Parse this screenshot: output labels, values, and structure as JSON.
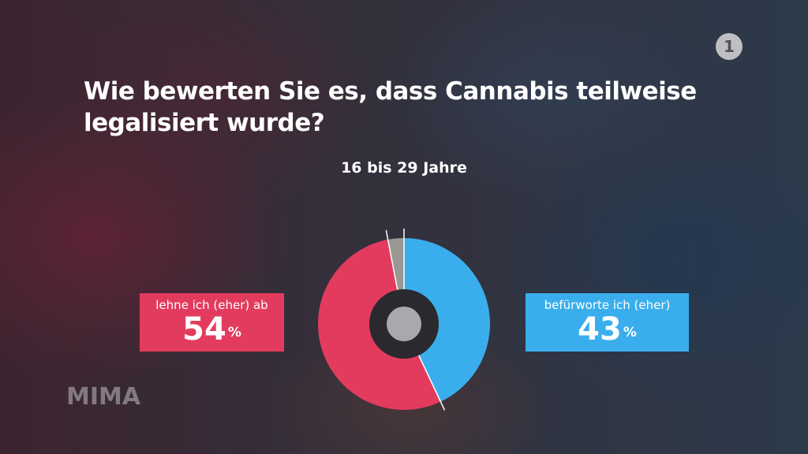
{
  "channel_logo": {
    "text": "1",
    "color": "#d7d7d7"
  },
  "watermark": "MIMA",
  "chart_data": {
    "type": "donut",
    "title": "Wie bewerten Sie es, dass Cannabis teilweise legalisiert wurde?",
    "subtitle": "16 bis 29 Jahre",
    "slices": [
      {
        "label": "befürworte ich (eher)",
        "value": 43,
        "display": "43",
        "unit": "%",
        "color": "#3aaeed"
      },
      {
        "label": "lehne ich (eher) ab",
        "value": 54,
        "display": "54",
        "unit": "%",
        "color": "#e33b5e"
      },
      {
        "label": "",
        "value": 3,
        "color": "#9a9892"
      }
    ],
    "start": "top",
    "direction": "clockwise"
  }
}
